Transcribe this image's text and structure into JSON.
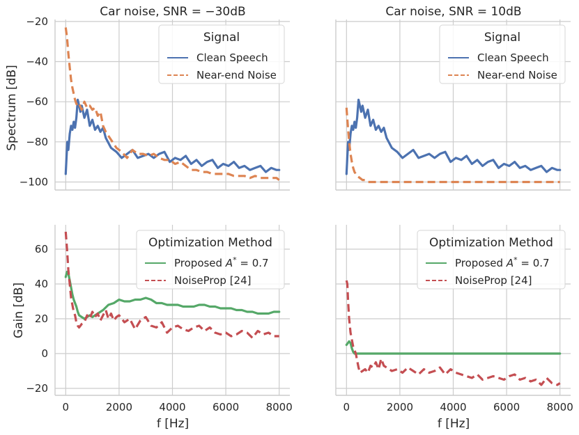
{
  "figure": {
    "xlabel": "f [Hz]",
    "ylabel_top": "Spectrum [dB]",
    "ylabel_bottom": "Gain [dB]"
  },
  "colors": {
    "clean_speech": "#4c72b0",
    "near_end_noise": "#dd8452",
    "proposed": "#55a868",
    "noiseprop": "#c44e52",
    "grid": "#cccccc"
  },
  "chart_data": [
    {
      "type": "line",
      "title": "Car noise, SNR = −30dB",
      "xlabel": "",
      "ylabel": "Spectrum [dB]",
      "xlim": [
        -400,
        8400
      ],
      "ylim": [
        -104,
        -19
      ],
      "xticks": [
        0,
        2000,
        4000,
        6000,
        8000
      ],
      "yticks": [
        -20,
        -40,
        -60,
        -80,
        -100
      ],
      "legend": {
        "title": "Signal",
        "position": "top-right"
      },
      "series": [
        {
          "name": "Clean Speech",
          "style": "solid",
          "x": [
            0,
            60,
            100,
            150,
            200,
            250,
            300,
            350,
            400,
            450,
            500,
            550,
            600,
            700,
            800,
            900,
            1000,
            1100,
            1200,
            1300,
            1400,
            1500,
            1700,
            1900,
            2100,
            2300,
            2500,
            2700,
            2900,
            3100,
            3300,
            3500,
            3700,
            3900,
            4100,
            4300,
            4500,
            4700,
            4900,
            5100,
            5300,
            5500,
            5700,
            5900,
            6100,
            6300,
            6500,
            6700,
            6900,
            7100,
            7300,
            7500,
            7700,
            7900,
            8000
          ],
          "y": [
            -96,
            -80,
            -84,
            -76,
            -72,
            -74,
            -70,
            -73,
            -68,
            -59,
            -62,
            -65,
            -62,
            -68,
            -64,
            -72,
            -69,
            -74,
            -72,
            -75,
            -73,
            -78,
            -83,
            -85,
            -88,
            -86,
            -84,
            -88,
            -87,
            -86,
            -88,
            -86,
            -85,
            -90,
            -88,
            -89,
            -87,
            -91,
            -89,
            -92,
            -90,
            -89,
            -93,
            -91,
            -92,
            -90,
            -93,
            -92,
            -94,
            -93,
            -92,
            -95,
            -93,
            -94,
            -94
          ]
        },
        {
          "name": "Near-end Noise",
          "style": "dashed",
          "x": [
            0,
            50,
            100,
            150,
            200,
            250,
            300,
            350,
            400,
            450,
            500,
            600,
            700,
            800,
            900,
            1000,
            1100,
            1200,
            1300,
            1400,
            1500,
            1700,
            1900,
            2100,
            2300,
            2500,
            2700,
            2900,
            3100,
            3300,
            3500,
            3700,
            3900,
            4100,
            4300,
            4500,
            4700,
            4900,
            5100,
            5300,
            5500,
            5700,
            5900,
            6100,
            6300,
            6500,
            6700,
            6900,
            7100,
            7300,
            7500,
            7700,
            7900,
            8000
          ],
          "y": [
            -23,
            -28,
            -36,
            -43,
            -49,
            -53,
            -56,
            -59,
            -61,
            -62,
            -61,
            -64,
            -60,
            -63,
            -62,
            -64,
            -63,
            -67,
            -65,
            -72,
            -75,
            -79,
            -83,
            -85,
            -88,
            -84,
            -86,
            -86,
            -87,
            -86,
            -88,
            -89,
            -89,
            -91,
            -90,
            -92,
            -94,
            -94,
            -95,
            -95,
            -96,
            -96,
            -96,
            -96,
            -97,
            -97,
            -97,
            -98,
            -97,
            -98,
            -98,
            -98,
            -98,
            -99
          ]
        }
      ]
    },
    {
      "type": "line",
      "title": "Car noise, SNR = 10dB",
      "xlabel": "",
      "ylabel": "",
      "xlim": [
        -400,
        8400
      ],
      "ylim": [
        -104,
        -19
      ],
      "xticks": [
        0,
        2000,
        4000,
        6000,
        8000
      ],
      "yticks": [
        -20,
        -40,
        -60,
        -80,
        -100
      ],
      "legend": {
        "title": "Signal",
        "position": "top-right"
      },
      "series": [
        {
          "name": "Clean Speech",
          "style": "solid",
          "x": [
            0,
            60,
            100,
            150,
            200,
            250,
            300,
            350,
            400,
            450,
            500,
            550,
            600,
            700,
            800,
            900,
            1000,
            1100,
            1200,
            1300,
            1400,
            1500,
            1700,
            1900,
            2100,
            2300,
            2500,
            2700,
            2900,
            3100,
            3300,
            3500,
            3700,
            3900,
            4100,
            4300,
            4500,
            4700,
            4900,
            5100,
            5300,
            5500,
            5700,
            5900,
            6100,
            6300,
            6500,
            6700,
            6900,
            7100,
            7300,
            7500,
            7700,
            7900,
            8000
          ],
          "y": [
            -96,
            -80,
            -84,
            -76,
            -72,
            -74,
            -70,
            -73,
            -68,
            -59,
            -62,
            -65,
            -62,
            -68,
            -64,
            -72,
            -69,
            -74,
            -72,
            -75,
            -73,
            -78,
            -83,
            -85,
            -88,
            -86,
            -84,
            -88,
            -87,
            -86,
            -88,
            -86,
            -85,
            -90,
            -88,
            -89,
            -87,
            -91,
            -89,
            -92,
            -90,
            -89,
            -93,
            -91,
            -92,
            -90,
            -93,
            -92,
            -94,
            -93,
            -92,
            -95,
            -93,
            -94,
            -94
          ]
        },
        {
          "name": "Near-end Noise",
          "style": "dashed",
          "x": [
            0,
            50,
            100,
            150,
            200,
            250,
            300,
            350,
            400,
            500,
            600,
            700,
            800,
            900,
            1000,
            1200,
            1500,
            2000,
            3000,
            4000,
            5000,
            6000,
            7000,
            8000
          ],
          "y": [
            -63,
            -72,
            -80,
            -86,
            -90,
            -93,
            -95,
            -96,
            -97,
            -98,
            -99,
            -99,
            -100,
            -100,
            -100,
            -100,
            -100,
            -100,
            -100,
            -100,
            -100,
            -100,
            -100,
            -100
          ]
        }
      ]
    },
    {
      "type": "line",
      "title": "",
      "xlabel": "f [Hz]",
      "ylabel": "Gain [dB]",
      "xlim": [
        -400,
        8400
      ],
      "ylim": [
        -24,
        74
      ],
      "xticks": [
        0,
        2000,
        4000,
        6000,
        8000
      ],
      "yticks": [
        60,
        40,
        20,
        0,
        -20
      ],
      "legend": {
        "title": "Optimization Method",
        "position": "top-right"
      },
      "series": [
        {
          "name": "Proposed A* = 0.7",
          "style": "solid",
          "x": [
            0,
            50,
            100,
            150,
            200,
            250,
            300,
            350,
            400,
            450,
            500,
            600,
            700,
            800,
            900,
            1000,
            1200,
            1400,
            1600,
            1800,
            2000,
            2200,
            2400,
            2600,
            2800,
            3000,
            3200,
            3400,
            3600,
            3800,
            4000,
            4200,
            4400,
            4600,
            4800,
            5000,
            5200,
            5400,
            5600,
            5800,
            6000,
            6200,
            6400,
            6600,
            6800,
            7000,
            7200,
            7400,
            7600,
            7800,
            8000
          ],
          "y": [
            44,
            47,
            46,
            42,
            38,
            34,
            31,
            29,
            27,
            24,
            22,
            21,
            20,
            21,
            22,
            21,
            23,
            25,
            28,
            29,
            31,
            30,
            30,
            31,
            31,
            32,
            31,
            29,
            29,
            28,
            28,
            28,
            27,
            27,
            27,
            28,
            28,
            27,
            27,
            26,
            26,
            26,
            25,
            25,
            24,
            24,
            23,
            23,
            23,
            24,
            24
          ]
        },
        {
          "name": "NoiseProp [24]",
          "style": "dashed",
          "x": [
            0,
            50,
            100,
            150,
            200,
            250,
            300,
            350,
            400,
            450,
            500,
            600,
            700,
            800,
            900,
            1000,
            1100,
            1200,
            1300,
            1400,
            1500,
            1600,
            1700,
            1800,
            1900,
            2000,
            2200,
            2400,
            2600,
            2800,
            3000,
            3200,
            3400,
            3600,
            3800,
            4000,
            4200,
            4400,
            4600,
            4800,
            5000,
            5200,
            5400,
            5600,
            5800,
            6000,
            6200,
            6400,
            6600,
            6800,
            7000,
            7200,
            7400,
            7600,
            7800,
            8000
          ],
          "y": [
            70,
            60,
            48,
            40,
            32,
            28,
            24,
            22,
            18,
            16,
            15,
            17,
            18,
            22,
            20,
            24,
            21,
            23,
            19,
            22,
            25,
            20,
            23,
            19,
            21,
            22,
            18,
            20,
            14,
            19,
            21,
            16,
            15,
            18,
            12,
            15,
            16,
            14,
            13,
            15,
            16,
            13,
            15,
            12,
            11,
            12,
            10,
            11,
            13,
            12,
            9,
            13,
            11,
            12,
            10,
            10
          ]
        }
      ]
    },
    {
      "type": "line",
      "title": "",
      "xlabel": "f [Hz]",
      "ylabel": "",
      "xlim": [
        -400,
        8400
      ],
      "ylim": [
        -24,
        74
      ],
      "xticks": [
        0,
        2000,
        4000,
        6000,
        8000
      ],
      "yticks": [
        60,
        40,
        20,
        0,
        -20
      ],
      "legend": {
        "title": "Optimization Method",
        "position": "top-right"
      },
      "series": [
        {
          "name": "Proposed A* = 0.7",
          "style": "solid",
          "x": [
            0,
            50,
            100,
            150,
            200,
            250,
            300,
            350,
            400,
            1000,
            2000,
            3000,
            4000,
            5000,
            6000,
            7000,
            8000
          ],
          "y": [
            5,
            6,
            7,
            6,
            3,
            1,
            0,
            0,
            0,
            0,
            0,
            0,
            0,
            0,
            0,
            0,
            0
          ]
        },
        {
          "name": "NoiseProp [24]",
          "style": "dashed",
          "x": [
            0,
            30,
            60,
            100,
            150,
            200,
            250,
            300,
            350,
            400,
            450,
            500,
            600,
            700,
            800,
            900,
            1000,
            1100,
            1200,
            1300,
            1400,
            1500,
            1700,
            1900,
            2100,
            2300,
            2500,
            2700,
            2900,
            3100,
            3300,
            3500,
            3700,
            3900,
            4100,
            4300,
            4500,
            4700,
            4900,
            5100,
            5300,
            5500,
            5700,
            5900,
            6100,
            6300,
            6500,
            6700,
            6900,
            7100,
            7300,
            7500,
            7700,
            7900,
            8000
          ],
          "y": [
            42,
            40,
            30,
            20,
            12,
            8,
            4,
            2,
            0,
            -4,
            -8,
            -11,
            -10,
            -9,
            -11,
            -7,
            -8,
            -5,
            -9,
            -3,
            -7,
            -8,
            -10,
            -9,
            -11,
            -8,
            -10,
            -12,
            -9,
            -11,
            -10,
            -8,
            -12,
            -9,
            -11,
            -12,
            -13,
            -14,
            -12,
            -15,
            -14,
            -13,
            -14,
            -15,
            -13,
            -12,
            -15,
            -14,
            -16,
            -15,
            -18,
            -14,
            -17,
            -18,
            -17
          ]
        }
      ]
    }
  ]
}
